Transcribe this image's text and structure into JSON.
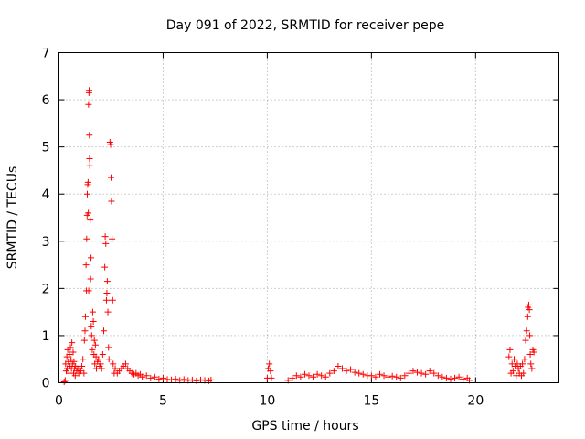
{
  "chart_data": {
    "type": "scatter",
    "title": "Day 091 of 2022, SRMTID for receiver pepe",
    "xlabel": "GPS time / hours",
    "ylabel": "SRMTID / TECUs",
    "xlim": [
      0,
      24
    ],
    "ylim": [
      0,
      7
    ],
    "xticks": [
      0,
      5,
      10,
      15,
      20
    ],
    "yticks": [
      0,
      1,
      2,
      3,
      4,
      5,
      6,
      7
    ],
    "grid": true,
    "marker": "plus",
    "color": "#ff0000",
    "series": [
      {
        "points": [
          [
            0.25,
            0.02
          ],
          [
            0.3,
            0.05
          ],
          [
            0.32,
            0.4
          ],
          [
            0.35,
            0.25
          ],
          [
            0.38,
            0.55
          ],
          [
            0.4,
            0.3
          ],
          [
            0.42,
            0.7
          ],
          [
            0.45,
            0.45
          ],
          [
            0.48,
            0.2
          ],
          [
            0.5,
            0.6
          ],
          [
            0.52,
            0.35
          ],
          [
            0.55,
            0.75
          ],
          [
            0.58,
            0.5
          ],
          [
            0.6,
            0.3
          ],
          [
            0.62,
            0.85
          ],
          [
            0.65,
            0.4
          ],
          [
            0.68,
            0.65
          ],
          [
            0.7,
            0.2
          ],
          [
            0.72,
            0.45
          ],
          [
            0.75,
            0.3
          ],
          [
            0.78,
            0.15
          ],
          [
            0.8,
            0.35
          ],
          [
            0.85,
            0.25
          ],
          [
            0.9,
            0.3
          ],
          [
            0.95,
            0.2
          ],
          [
            1.0,
            0.3
          ],
          [
            1.05,
            0.25
          ],
          [
            1.1,
            0.35
          ],
          [
            1.15,
            0.5
          ],
          [
            1.2,
            0.2
          ],
          [
            1.22,
            0.9
          ],
          [
            1.25,
            1.1
          ],
          [
            1.27,
            1.4
          ],
          [
            1.3,
            2.5
          ],
          [
            1.32,
            1.95
          ],
          [
            1.33,
            3.05
          ],
          [
            1.35,
            3.55
          ],
          [
            1.36,
            4.0
          ],
          [
            1.38,
            4.2
          ],
          [
            1.4,
            4.25
          ],
          [
            1.41,
            3.6
          ],
          [
            1.42,
            5.9
          ],
          [
            1.43,
            1.95
          ],
          [
            1.44,
            6.15
          ],
          [
            1.45,
            6.2
          ],
          [
            1.46,
            5.25
          ],
          [
            1.47,
            4.75
          ],
          [
            1.48,
            4.6
          ],
          [
            1.5,
            3.45
          ],
          [
            1.52,
            2.2
          ],
          [
            1.54,
            2.65
          ],
          [
            1.55,
            1.2
          ],
          [
            1.57,
            1.0
          ],
          [
            1.6,
            0.7
          ],
          [
            1.62,
            1.5
          ],
          [
            1.65,
            1.3
          ],
          [
            1.68,
            0.6
          ],
          [
            1.7,
            0.9
          ],
          [
            1.72,
            0.4
          ],
          [
            1.75,
            0.8
          ],
          [
            1.78,
            0.55
          ],
          [
            1.8,
            0.3
          ],
          [
            1.85,
            0.45
          ],
          [
            1.9,
            0.5
          ],
          [
            1.95,
            0.35
          ],
          [
            2.0,
            0.4
          ],
          [
            2.05,
            0.3
          ],
          [
            2.1,
            0.6
          ],
          [
            2.15,
            1.1
          ],
          [
            2.2,
            2.45
          ],
          [
            2.22,
            3.1
          ],
          [
            2.25,
            2.95
          ],
          [
            2.28,
            1.75
          ],
          [
            2.3,
            1.9
          ],
          [
            2.32,
            2.15
          ],
          [
            2.35,
            1.5
          ],
          [
            2.38,
            0.75
          ],
          [
            2.4,
            0.5
          ],
          [
            2.45,
            5.1
          ],
          [
            2.48,
            5.05
          ],
          [
            2.5,
            4.35
          ],
          [
            2.52,
            3.85
          ],
          [
            2.55,
            3.05
          ],
          [
            2.58,
            1.75
          ],
          [
            2.6,
            0.4
          ],
          [
            2.65,
            0.2
          ],
          [
            2.7,
            0.3
          ],
          [
            2.8,
            0.2
          ],
          [
            2.9,
            0.25
          ],
          [
            3.0,
            0.3
          ],
          [
            3.1,
            0.35
          ],
          [
            3.2,
            0.4
          ],
          [
            3.3,
            0.3
          ],
          [
            3.4,
            0.25
          ],
          [
            3.5,
            0.2
          ],
          [
            3.6,
            0.18
          ],
          [
            3.7,
            0.2
          ],
          [
            3.8,
            0.15
          ],
          [
            3.9,
            0.18
          ],
          [
            4.0,
            0.12
          ],
          [
            4.2,
            0.15
          ],
          [
            4.4,
            0.1
          ],
          [
            4.6,
            0.12
          ],
          [
            4.8,
            0.08
          ],
          [
            5.0,
            0.1
          ],
          [
            5.2,
            0.07
          ],
          [
            5.4,
            0.06
          ],
          [
            5.6,
            0.08
          ],
          [
            5.8,
            0.05
          ],
          [
            6.0,
            0.07
          ],
          [
            6.2,
            0.05
          ],
          [
            6.4,
            0.06
          ],
          [
            6.6,
            0.04
          ],
          [
            6.8,
            0.06
          ],
          [
            7.0,
            0.05
          ],
          [
            7.2,
            0.04
          ],
          [
            7.3,
            0.06
          ],
          [
            10.0,
            0.1
          ],
          [
            10.05,
            0.3
          ],
          [
            10.1,
            0.4
          ],
          [
            10.15,
            0.25
          ],
          [
            10.2,
            0.1
          ],
          [
            11.0,
            0.05
          ],
          [
            11.2,
            0.1
          ],
          [
            11.4,
            0.15
          ],
          [
            11.6,
            0.12
          ],
          [
            11.8,
            0.18
          ],
          [
            12.0,
            0.15
          ],
          [
            12.2,
            0.12
          ],
          [
            12.4,
            0.18
          ],
          [
            12.6,
            0.15
          ],
          [
            12.8,
            0.12
          ],
          [
            13.0,
            0.2
          ],
          [
            13.2,
            0.25
          ],
          [
            13.4,
            0.35
          ],
          [
            13.6,
            0.3
          ],
          [
            13.8,
            0.25
          ],
          [
            14.0,
            0.28
          ],
          [
            14.2,
            0.22
          ],
          [
            14.4,
            0.2
          ],
          [
            14.6,
            0.18
          ],
          [
            14.8,
            0.15
          ],
          [
            15.0,
            0.15
          ],
          [
            15.2,
            0.12
          ],
          [
            15.4,
            0.18
          ],
          [
            15.6,
            0.15
          ],
          [
            15.8,
            0.12
          ],
          [
            16.0,
            0.14
          ],
          [
            16.2,
            0.12
          ],
          [
            16.4,
            0.1
          ],
          [
            16.6,
            0.15
          ],
          [
            16.8,
            0.2
          ],
          [
            17.0,
            0.25
          ],
          [
            17.2,
            0.22
          ],
          [
            17.4,
            0.2
          ],
          [
            17.6,
            0.18
          ],
          [
            17.8,
            0.25
          ],
          [
            18.0,
            0.2
          ],
          [
            18.2,
            0.15
          ],
          [
            18.4,
            0.12
          ],
          [
            18.6,
            0.1
          ],
          [
            18.8,
            0.08
          ],
          [
            19.0,
            0.1
          ],
          [
            19.2,
            0.12
          ],
          [
            19.4,
            0.08
          ],
          [
            19.6,
            0.1
          ],
          [
            19.7,
            0.05
          ],
          [
            21.6,
            0.55
          ],
          [
            21.65,
            0.7
          ],
          [
            21.7,
            0.2
          ],
          [
            21.75,
            0.4
          ],
          [
            21.8,
            0.25
          ],
          [
            21.85,
            0.5
          ],
          [
            21.9,
            0.35
          ],
          [
            21.95,
            0.15
          ],
          [
            22.0,
            0.4
          ],
          [
            22.05,
            0.3
          ],
          [
            22.1,
            0.2
          ],
          [
            22.15,
            0.35
          ],
          [
            22.2,
            0.15
          ],
          [
            22.25,
            0.4
          ],
          [
            22.3,
            0.2
          ],
          [
            22.35,
            0.5
          ],
          [
            22.4,
            0.9
          ],
          [
            22.45,
            1.1
          ],
          [
            22.5,
            1.4
          ],
          [
            22.52,
            1.6
          ],
          [
            22.55,
            1.65
          ],
          [
            22.58,
            1.55
          ],
          [
            22.6,
            1.0
          ],
          [
            22.62,
            0.6
          ],
          [
            22.65,
            0.4
          ],
          [
            22.7,
            0.3
          ],
          [
            22.75,
            0.7
          ],
          [
            22.8,
            0.65
          ]
        ]
      }
    ]
  }
}
